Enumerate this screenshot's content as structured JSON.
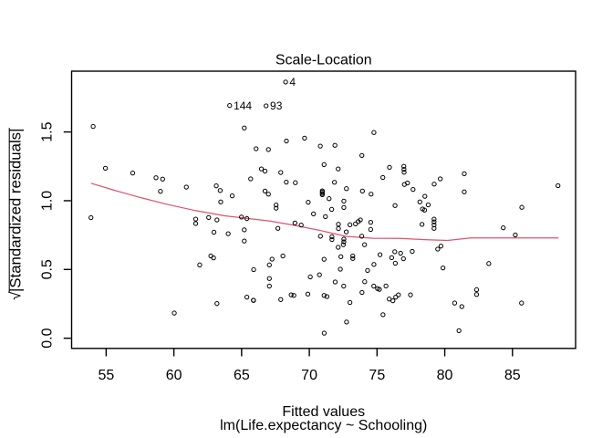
{
  "chart_data": {
    "type": "scatter",
    "title": "Scale-Location",
    "xlabel": "Fitted values",
    "sub_caption": "lm(Life.expectancy ~ Schooling)",
    "ylabel_prefix": "√",
    "ylabel_core": "|Standardized residuals|",
    "x_ticks": [
      "55",
      "60",
      "65",
      "70",
      "75",
      "80",
      "85"
    ],
    "x_tick_values": [
      55,
      60,
      65,
      70,
      75,
      80,
      85
    ],
    "y_ticks": [
      "0.0",
      "0.5",
      "1.0",
      "1.5"
    ],
    "y_tick_values": [
      0.0,
      0.5,
      1.0,
      1.5
    ],
    "xlim": [
      52.45,
      89.66
    ],
    "ylim": [
      -0.074,
      1.942
    ],
    "grid": false,
    "point_color": "#000000",
    "smooth_color": "#DF536B",
    "labeled_points": [
      {
        "label": "4",
        "point_index": 1
      },
      {
        "label": "144",
        "point_index": 2
      },
      {
        "label": "93",
        "point_index": 3
      }
    ],
    "points": [
      [
        54.04,
        1.54
      ],
      [
        68.25,
        1.863
      ],
      [
        64.12,
        1.692
      ],
      [
        66.81,
        1.69
      ],
      [
        65.2,
        1.529
      ],
      [
        66.07,
        1.378
      ],
      [
        66.98,
        1.372
      ],
      [
        68.31,
        1.434
      ],
      [
        69.65,
        1.455
      ],
      [
        70.81,
        1.397
      ],
      [
        74.77,
        1.496
      ],
      [
        71.89,
        1.403
      ],
      [
        73.88,
        1.329
      ],
      [
        54.95,
        1.236
      ],
      [
        56.96,
        1.201
      ],
      [
        58.68,
        1.167
      ],
      [
        59.17,
        1.157
      ],
      [
        60.92,
        1.099
      ],
      [
        59.01,
        1.068
      ],
      [
        53.88,
        0.877
      ],
      [
        66.46,
        1.231
      ],
      [
        66.73,
        1.215
      ],
      [
        65.67,
        1.159
      ],
      [
        67.89,
        1.205
      ],
      [
        68.3,
        1.135
      ],
      [
        68.97,
        1.131
      ],
      [
        63.13,
        1.108
      ],
      [
        63.42,
        1.074
      ],
      [
        64.31,
        1.035
      ],
      [
        63.46,
        0.991
      ],
      [
        66.73,
        1.07
      ],
      [
        66.98,
        1.048
      ],
      [
        67.55,
        0.969
      ],
      [
        67.55,
        0.946
      ],
      [
        69.92,
        0.989
      ],
      [
        70.96,
        1.072
      ],
      [
        70.96,
        1.063
      ],
      [
        70.96,
        1.053
      ],
      [
        70.96,
        1.044
      ],
      [
        70.31,
        0.904
      ],
      [
        62.57,
        0.878
      ],
      [
        63.18,
        0.86
      ],
      [
        61.61,
        0.866
      ],
      [
        61.61,
        0.834
      ],
      [
        64.99,
        0.881
      ],
      [
        65.39,
        0.87
      ],
      [
        65.2,
        0.788
      ],
      [
        62.96,
        0.771
      ],
      [
        64.01,
        0.76
      ],
      [
        65.2,
        0.707
      ],
      [
        68.94,
        0.838
      ],
      [
        69.4,
        0.823
      ],
      [
        67.68,
        0.799
      ],
      [
        70.82,
        0.742
      ],
      [
        62.73,
        0.598
      ],
      [
        62.93,
        0.584
      ],
      [
        68.05,
        0.598
      ],
      [
        71.09,
        1.263
      ],
      [
        72.13,
        1.231
      ],
      [
        75.92,
        1.243
      ],
      [
        76.98,
        1.25
      ],
      [
        76.99,
        1.228
      ],
      [
        77.0,
        1.207
      ],
      [
        71.86,
        1.134
      ],
      [
        75.43,
        1.169
      ],
      [
        72.74,
        1.088
      ],
      [
        73.92,
        1.07
      ],
      [
        74.56,
        1.048
      ],
      [
        77.02,
        1.118
      ],
      [
        77.25,
        1.129
      ],
      [
        77.66,
        1.082
      ],
      [
        71.46,
        1.015
      ],
      [
        72.55,
        0.997
      ],
      [
        72.55,
        0.951
      ],
      [
        71.65,
        0.937
      ],
      [
        76.33,
        0.965
      ],
      [
        79.67,
        1.159
      ],
      [
        79.22,
        1.121
      ],
      [
        78.53,
        1.032
      ],
      [
        78.16,
        0.991
      ],
      [
        78.78,
        0.97
      ],
      [
        78.36,
        0.94
      ],
      [
        78.51,
        0.932
      ],
      [
        79.21,
        0.866
      ],
      [
        79.21,
        0.846
      ],
      [
        79.21,
        0.824
      ],
      [
        79.21,
        0.799
      ],
      [
        78.32,
        0.828
      ],
      [
        71.19,
        0.884
      ],
      [
        72.15,
        0.829
      ],
      [
        72.15,
        0.797
      ],
      [
        73.0,
        0.825
      ],
      [
        73.41,
        0.831
      ],
      [
        73.61,
        0.848
      ],
      [
        73.77,
        0.86
      ],
      [
        74.53,
        0.843
      ],
      [
        74.53,
        0.791
      ],
      [
        72.73,
        0.773
      ],
      [
        71.67,
        0.738
      ],
      [
        71.67,
        0.718
      ],
      [
        72.55,
        0.721
      ],
      [
        72.55,
        0.701
      ],
      [
        72.51,
        0.68
      ],
      [
        72.13,
        0.661
      ],
      [
        73.87,
        0.742
      ],
      [
        74.08,
        0.68
      ],
      [
        76.31,
        0.629
      ],
      [
        76.74,
        0.618
      ],
      [
        77.6,
        0.631
      ],
      [
        79.72,
        0.67
      ],
      [
        79.48,
        0.648
      ],
      [
        75.22,
        0.607
      ],
      [
        73.21,
        0.598
      ],
      [
        73.21,
        0.58
      ],
      [
        72.33,
        0.593
      ],
      [
        81.44,
        1.196
      ],
      [
        81.44,
        1.064
      ],
      [
        88.36,
        1.109
      ],
      [
        85.69,
        0.952
      ],
      [
        84.32,
        0.803
      ],
      [
        85.21,
        0.751
      ],
      [
        60.03,
        0.183
      ],
      [
        61.91,
        0.533
      ],
      [
        65.89,
        0.499
      ],
      [
        67.05,
        0.533
      ],
      [
        67.25,
        0.575
      ],
      [
        67.05,
        0.434
      ],
      [
        67.05,
        0.379
      ],
      [
        65.39,
        0.299
      ],
      [
        65.87,
        0.276
      ],
      [
        65.88,
        0.275
      ],
      [
        63.18,
        0.252
      ],
      [
        67.89,
        0.281
      ],
      [
        68.66,
        0.315
      ],
      [
        68.86,
        0.311
      ],
      [
        69.89,
        0.321
      ],
      [
        70.07,
        0.446
      ],
      [
        70.75,
        0.461
      ],
      [
        71.09,
        0.574
      ],
      [
        76.08,
        0.586
      ],
      [
        76.35,
        0.545
      ],
      [
        76.95,
        0.578
      ],
      [
        74.77,
        0.537
      ],
      [
        74.3,
        0.493
      ],
      [
        72.29,
        0.502
      ],
      [
        71.91,
        0.409
      ],
      [
        72.54,
        0.379
      ],
      [
        74.09,
        0.411
      ],
      [
        73.89,
        0.333
      ],
      [
        74.76,
        0.379
      ],
      [
        75.04,
        0.361
      ],
      [
        75.18,
        0.355
      ],
      [
        75.66,
        0.38
      ],
      [
        71.09,
        0.311
      ],
      [
        71.3,
        0.303
      ],
      [
        73.0,
        0.26
      ],
      [
        75.9,
        0.285
      ],
      [
        76.17,
        0.272
      ],
      [
        76.38,
        0.299
      ],
      [
        76.58,
        0.315
      ],
      [
        77.47,
        0.315
      ],
      [
        75.44,
        0.171
      ],
      [
        72.75,
        0.118
      ],
      [
        71.1,
        0.037
      ],
      [
        79.87,
        0.511
      ],
      [
        83.25,
        0.543
      ],
      [
        82.35,
        0.353
      ],
      [
        82.35,
        0.318
      ],
      [
        80.73,
        0.256
      ],
      [
        81.26,
        0.23
      ],
      [
        85.67,
        0.256
      ],
      [
        81.05,
        0.055
      ]
    ],
    "smooth_line": [
      [
        53.88,
        1.127
      ],
      [
        55.6,
        1.076
      ],
      [
        57.6,
        1.021
      ],
      [
        59.6,
        0.971
      ],
      [
        61.6,
        0.928
      ],
      [
        63.7,
        0.891
      ],
      [
        65.0,
        0.876
      ],
      [
        67.1,
        0.852
      ],
      [
        68.7,
        0.825
      ],
      [
        70.7,
        0.786
      ],
      [
        72.7,
        0.741
      ],
      [
        74.7,
        0.727
      ],
      [
        76.7,
        0.726
      ],
      [
        78.7,
        0.716
      ],
      [
        80.2,
        0.711
      ],
      [
        81.9,
        0.729
      ],
      [
        88.4,
        0.729
      ]
    ]
  }
}
